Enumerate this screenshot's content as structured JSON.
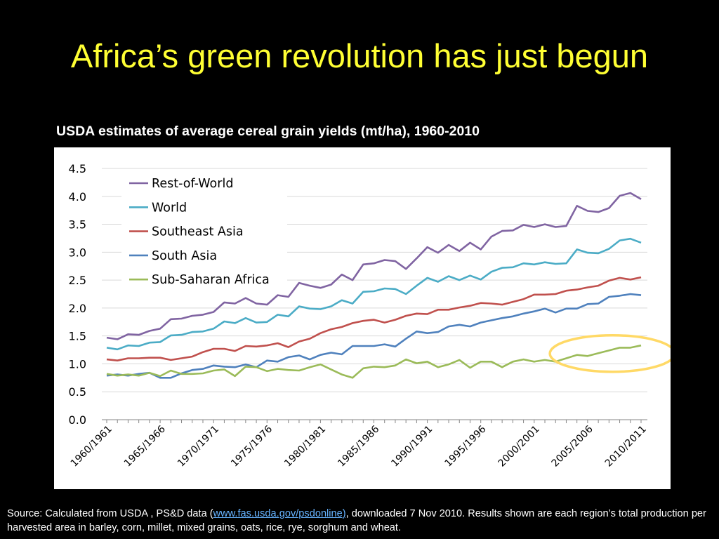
{
  "slide": {
    "title": "Africa’s green revolution has just begun"
  },
  "chart_caption": "USDA estimates of average cereal grain yields (mt/ha), 1960-2010",
  "source": {
    "prefix": "Source: Calculated  from USDA , PS&D data (",
    "link_text": "www.fas.usda.gov/psdonline)",
    "suffix": ", downloaded 7 Nov 2010.  Results shown are each region’s total production per harvested area in barley, corn, millet, mixed grains, oats, rice, rye, sorghum and wheat.",
    "link_color": "#66B3FF"
  },
  "chart_data": {
    "type": "line",
    "title": "",
    "xlabel": "",
    "ylabel": "",
    "ylim": [
      0,
      4.5
    ],
    "yticks": [
      "0.0",
      "0.5",
      "1.0",
      "1.5",
      "2.0",
      "2.5",
      "3.0",
      "3.5",
      "4.0",
      "4.5"
    ],
    "grid": "horizontal",
    "legend_position": "top-left",
    "x_tick_labels": [
      "1960/1961",
      "1965/1966",
      "1970/1971",
      "1975/1976",
      "1980/1981",
      "1985/1986",
      "1990/1991",
      "1995/1996",
      "2000/2001",
      "2005/2006",
      "2010/2011"
    ],
    "x_tick_indices": [
      0,
      5,
      10,
      15,
      20,
      25,
      30,
      35,
      40,
      45,
      50
    ],
    "annotation": {
      "type": "ellipse",
      "color": "#FFD966",
      "around": "Sub-Saharan Africa 2002/2003-2010/2011"
    },
    "series": [
      {
        "name": "Rest-of-World",
        "color": "#8064A2",
        "values": [
          1.47,
          1.44,
          1.53,
          1.52,
          1.59,
          1.63,
          1.8,
          1.81,
          1.86,
          1.88,
          1.93,
          2.1,
          2.08,
          2.18,
          2.08,
          2.06,
          2.23,
          2.2,
          2.45,
          2.4,
          2.36,
          2.42,
          2.6,
          2.5,
          2.78,
          2.8,
          2.86,
          2.84,
          2.7,
          2.89,
          3.09,
          2.99,
          3.13,
          3.02,
          3.17,
          3.05,
          3.28,
          3.38,
          3.39,
          3.49,
          3.45,
          3.5,
          3.45,
          3.47,
          3.83,
          3.74,
          3.72,
          3.79,
          4.01,
          4.06,
          3.95
        ]
      },
      {
        "name": "World",
        "color": "#4BACC6",
        "values": [
          1.29,
          1.26,
          1.33,
          1.32,
          1.38,
          1.39,
          1.51,
          1.52,
          1.57,
          1.58,
          1.63,
          1.76,
          1.73,
          1.82,
          1.74,
          1.75,
          1.88,
          1.85,
          2.03,
          1.99,
          1.98,
          2.03,
          2.14,
          2.08,
          2.29,
          2.3,
          2.35,
          2.34,
          2.25,
          2.4,
          2.54,
          2.47,
          2.57,
          2.5,
          2.58,
          2.51,
          2.65,
          2.72,
          2.73,
          2.8,
          2.78,
          2.82,
          2.79,
          2.8,
          3.05,
          2.99,
          2.98,
          3.06,
          3.21,
          3.24,
          3.17
        ]
      },
      {
        "name": "Southeast Asia",
        "color": "#C0504D",
        "values": [
          1.08,
          1.06,
          1.1,
          1.1,
          1.11,
          1.11,
          1.07,
          1.1,
          1.13,
          1.21,
          1.27,
          1.27,
          1.23,
          1.32,
          1.31,
          1.33,
          1.37,
          1.3,
          1.4,
          1.45,
          1.55,
          1.62,
          1.66,
          1.73,
          1.77,
          1.79,
          1.74,
          1.79,
          1.86,
          1.9,
          1.89,
          1.97,
          1.97,
          2.01,
          2.04,
          2.09,
          2.08,
          2.06,
          2.11,
          2.16,
          2.24,
          2.24,
          2.25,
          2.31,
          2.33,
          2.37,
          2.4,
          2.49,
          2.54,
          2.51,
          2.55
        ]
      },
      {
        "name": "South Asia",
        "color": "#4F81BD",
        "values": [
          0.79,
          0.81,
          0.79,
          0.82,
          0.84,
          0.75,
          0.75,
          0.83,
          0.89,
          0.91,
          0.97,
          0.95,
          0.94,
          0.99,
          0.94,
          1.06,
          1.04,
          1.12,
          1.15,
          1.08,
          1.16,
          1.2,
          1.17,
          1.32,
          1.32,
          1.32,
          1.35,
          1.31,
          1.45,
          1.58,
          1.55,
          1.57,
          1.67,
          1.7,
          1.67,
          1.74,
          1.78,
          1.82,
          1.85,
          1.9,
          1.94,
          1.99,
          1.92,
          1.99,
          1.99,
          2.07,
          2.08,
          2.2,
          2.22,
          2.25,
          2.23
        ]
      },
      {
        "name": "Sub-Saharan Africa",
        "color": "#9BBB59",
        "values": [
          0.82,
          0.79,
          0.81,
          0.79,
          0.84,
          0.78,
          0.88,
          0.82,
          0.82,
          0.83,
          0.88,
          0.9,
          0.78,
          0.95,
          0.94,
          0.87,
          0.91,
          0.89,
          0.88,
          0.94,
          0.99,
          0.9,
          0.81,
          0.75,
          0.92,
          0.95,
          0.94,
          0.97,
          1.08,
          1.01,
          1.04,
          0.94,
          0.99,
          1.07,
          0.93,
          1.04,
          1.04,
          0.94,
          1.04,
          1.08,
          1.04,
          1.07,
          1.04,
          1.1,
          1.16,
          1.14,
          1.19,
          1.24,
          1.29,
          1.29,
          1.33
        ]
      }
    ]
  }
}
